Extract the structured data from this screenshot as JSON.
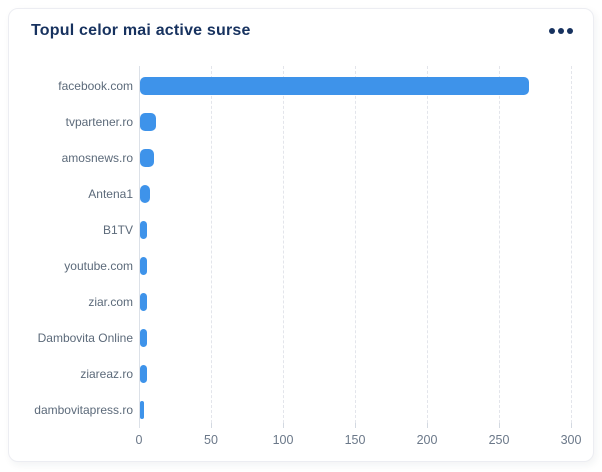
{
  "card": {
    "title": "Topul celor mai active surse",
    "menu_icon": "more-options-dots"
  },
  "chart_data": {
    "type": "bar",
    "orientation": "horizontal",
    "title": "Topul celor mai active surse",
    "categories": [
      "facebook.com",
      "tvpartener.ro",
      "amosnews.ro",
      "Antena1",
      "B1TV",
      "youtube.com",
      "ziar.com",
      "Dambovita Online",
      "ziareaz.ro",
      "dambovitapress.ro"
    ],
    "values": [
      270,
      11,
      10,
      7,
      5,
      5,
      5,
      5,
      5,
      3
    ],
    "xlabel": "",
    "ylabel": "",
    "xlim": [
      0,
      300
    ],
    "x_ticks": [
      0,
      50,
      100,
      150,
      200,
      250,
      300
    ],
    "grid": "dashed-vertical",
    "legend": "none",
    "bar_color": "#3E93EA"
  },
  "colors": {
    "title": "#17325F",
    "category_label": "#5C6A7A",
    "tick_label": "#6B7889",
    "gridline": "#E3E5EB",
    "axis_line": "#DCE1E8",
    "card_border": "#ECEDF2",
    "bar": "#3E93EA"
  }
}
